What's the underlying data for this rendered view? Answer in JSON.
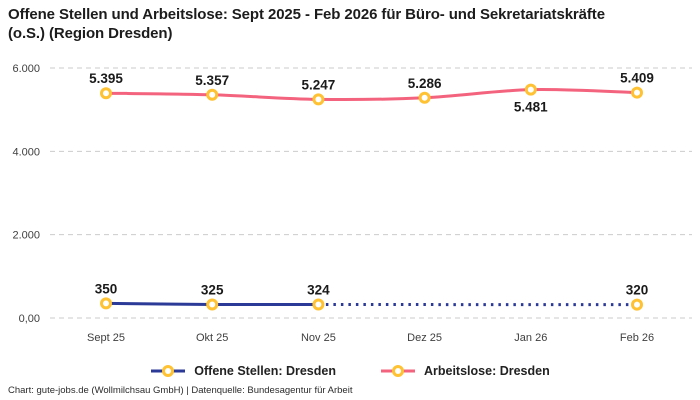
{
  "title": "Offene Stellen und Arbeitslose: Sept 2025 - Feb 2026 für Büro- und Sekretariatskräfte (o.S.) (Region Dresden)",
  "footer": "Chart: gute-jobs.de (Wollmilchsau GmbH) | Datenquelle: Bundesagentur für Arbeit",
  "colors": {
    "offene_stellen_line": "#2B3A97",
    "arbeitslose_line": "#F4637D",
    "marker_ring": "#FFC233",
    "marker_fill": "#FFFFFF",
    "gridline": "#CBCBCB",
    "label_text": "#1A1A1A",
    "axis_text": "#3F3F3F"
  },
  "chart_data": {
    "type": "line",
    "title": "Offene Stellen und Arbeitslose: Sept 2025 - Feb 2026 für Büro- und Sekretariatskräfte (o.S.) (Region Dresden)",
    "categories": [
      "Sept 25",
      "Okt 25",
      "Nov 25",
      "Dez 25",
      "Jan 26",
      "Feb 26"
    ],
    "series": [
      {
        "name": "Offene Stellen: Dresden",
        "color": "#2B3A97",
        "values": [
          350,
          325,
          324,
          null,
          null,
          320
        ],
        "labels": [
          "350",
          "325",
          "324",
          null,
          null,
          "320"
        ],
        "label_below_indices": [],
        "gap_style": "dotted"
      },
      {
        "name": "Arbeitslose: Dresden",
        "color": "#F4637D",
        "values": [
          5395,
          5357,
          5247,
          5286,
          5481,
          5409
        ],
        "labels": [
          "5.395",
          "5.357",
          "5.247",
          "5.286",
          "5.481",
          "5.409"
        ],
        "label_below_indices": [
          4
        ],
        "gap_style": "dotted"
      }
    ],
    "y_ticks": [
      {
        "value": 6000,
        "label": "6.000"
      },
      {
        "value": 4000,
        "label": "4.000"
      },
      {
        "value": 2000,
        "label": "2.000"
      },
      {
        "value": 0,
        "label": "0,00"
      }
    ],
    "ylim": [
      0,
      6000
    ],
    "xlabel": "",
    "ylabel": "",
    "grid": "horizontal-dashed",
    "legend_position": "bottom",
    "marker_style": "open-circle-yellow"
  }
}
